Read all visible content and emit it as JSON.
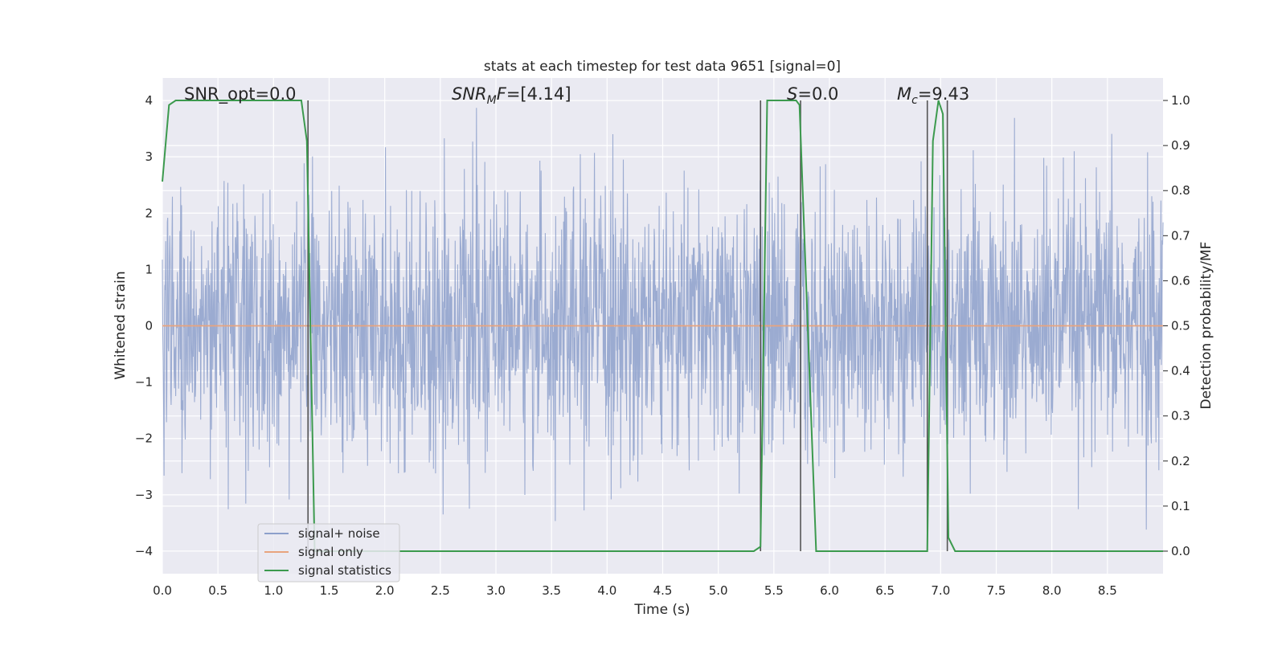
{
  "chart_data": {
    "type": "line",
    "title": "stats at each timestep for test data 9651 [signal=0]",
    "xlabel": "Time (s)",
    "ylabel": "Whitened strain",
    "ylabel_right": "Detection probability/MF",
    "xlim": [
      0.0,
      9.0
    ],
    "ylim": [
      -4.4,
      4.4
    ],
    "ylim_right": [
      -0.05,
      1.05
    ],
    "x_ticks": [
      0.0,
      0.5,
      1.0,
      1.5,
      2.0,
      2.5,
      3.0,
      3.5,
      4.0,
      4.5,
      5.0,
      5.5,
      6.0,
      6.5,
      7.0,
      7.5,
      8.0,
      8.5
    ],
    "x_tick_labels": [
      "0.0",
      "0.5",
      "1.0",
      "1.5",
      "2.0",
      "2.5",
      "3.0",
      "3.5",
      "4.0",
      "4.5",
      "5.0",
      "5.5",
      "6.0",
      "6.5",
      "7.0",
      "7.5",
      "8.0",
      "8.5"
    ],
    "y_ticks": [
      -4,
      -3,
      -2,
      -1,
      0,
      1,
      2,
      3,
      4
    ],
    "y_tick_labels": [
      "−4",
      "−3",
      "−2",
      "−1",
      "0",
      "1",
      "2",
      "3",
      "4"
    ],
    "y_right_ticks": [
      0.0,
      0.1,
      0.2,
      0.3,
      0.4,
      0.5,
      0.6,
      0.7,
      0.8,
      0.9,
      1.0
    ],
    "y_right_tick_labels": [
      "0.0",
      "0.1",
      "0.2",
      "0.3",
      "0.4",
      "0.5",
      "0.6",
      "0.7",
      "0.8",
      "0.9",
      "1.0"
    ],
    "grid": true,
    "legend_position": "lower-left",
    "series": [
      {
        "name": "signal+ noise",
        "color": "#8da0cb",
        "axis": "left",
        "description_values": "white noise, approx range [-3.9, 3.9]",
        "envelope_max": 3.9,
        "envelope_min": -3.9
      },
      {
        "name": "signal only",
        "color": "#e8a47e",
        "axis": "left",
        "x": [
          0.0,
          9.0
        ],
        "y": [
          0.0,
          0.0
        ]
      },
      {
        "name": "signal statistics",
        "color": "#3c9a4e",
        "axis": "right",
        "x": [
          0.0,
          0.06,
          0.12,
          0.5,
          1.0,
          1.25,
          1.3,
          1.37,
          1.45,
          2.0,
          3.0,
          4.0,
          5.0,
          5.32,
          5.38,
          5.44,
          5.5,
          5.7,
          5.73,
          5.88,
          6.0,
          6.5,
          6.88,
          6.93,
          6.98,
          7.02,
          7.07,
          7.13,
          7.2,
          7.5,
          8.0,
          8.5,
          9.0
        ],
        "y": [
          0.82,
          0.99,
          1.0,
          1.0,
          1.0,
          1.0,
          0.91,
          0.0,
          0.0,
          0.0,
          0.0,
          0.0,
          0.0,
          0.0,
          0.01,
          1.0,
          1.0,
          1.0,
          0.99,
          0.0,
          0.0,
          0.0,
          0.0,
          0.91,
          1.0,
          0.97,
          0.03,
          0.0,
          0.0,
          0.0,
          0.0,
          0.0,
          0.0
        ]
      }
    ],
    "vertical_lines": [
      1.31,
      5.38,
      5.74,
      6.88,
      7.06
    ],
    "annotations": [
      {
        "text": "SNR_opt=0.0",
        "x": 0.19,
        "y": 4.0
      },
      {
        "text": "SNR_MF=[4.14]",
        "x": 2.6,
        "y": 4.0
      },
      {
        "text": "S=0.0",
        "x": 5.6,
        "y": 4.0
      },
      {
        "text": "M_c=9.43",
        "x": 6.6,
        "y": 4.0
      }
    ]
  }
}
